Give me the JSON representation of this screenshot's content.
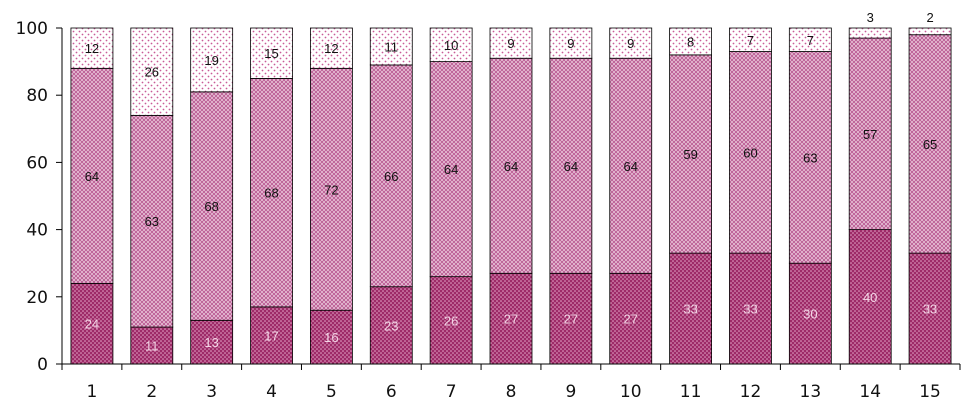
{
  "chart_data": {
    "type": "bar",
    "stacked": true,
    "categories": [
      "1",
      "2",
      "3",
      "4",
      "5",
      "6",
      "7",
      "8",
      "9",
      "10",
      "11",
      "12",
      "13",
      "14",
      "15"
    ],
    "series": [
      {
        "values": [
          24,
          11,
          13,
          17,
          16,
          23,
          26,
          27,
          27,
          27,
          33,
          33,
          30,
          40,
          33
        ],
        "color": "#9e2b68",
        "pattern": "dense-dots",
        "label_color": "#f3d5e6"
      },
      {
        "values": [
          64,
          63,
          68,
          68,
          72,
          66,
          64,
          64,
          64,
          64,
          59,
          60,
          63,
          57,
          65
        ],
        "color": "#d49bbd",
        "pattern": "crosshatch",
        "label_color": "#111111"
      },
      {
        "values": [
          12,
          26,
          19,
          15,
          12,
          11,
          10,
          9,
          9,
          9,
          8,
          7,
          7,
          3,
          2
        ],
        "color": "#ffffff",
        "pattern": "sparse-dots",
        "label_color": "#111111"
      }
    ],
    "ylim": [
      0,
      100
    ],
    "yticks": [
      "0",
      "20",
      "40",
      "60",
      "80",
      "100"
    ],
    "xlabel": "",
    "ylabel": "",
    "title": "",
    "grid": false
  }
}
